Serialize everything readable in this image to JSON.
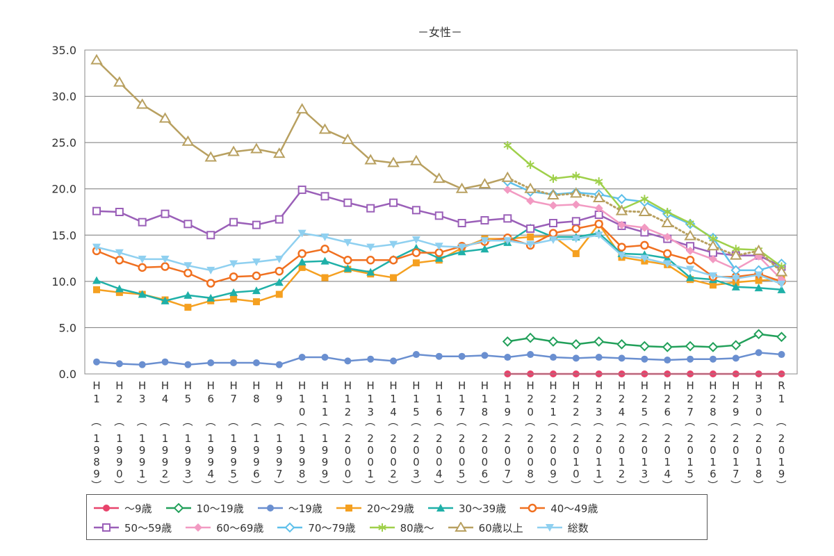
{
  "chart_data": {
    "type": "line",
    "title": "－女性－",
    "ylim": [
      0,
      35
    ],
    "y_ticks": [
      "0.0",
      "5.0",
      "10.0",
      "15.0",
      "20.0",
      "25.0",
      "30.0",
      "35.0"
    ],
    "categories": [
      {
        "era": [
          "H",
          "1"
        ],
        "year": [
          "1",
          "9",
          "8",
          "9"
        ]
      },
      {
        "era": [
          "H",
          "2"
        ],
        "year": [
          "1",
          "9",
          "9",
          "0"
        ]
      },
      {
        "era": [
          "H",
          "3"
        ],
        "year": [
          "1",
          "9",
          "9",
          "1"
        ]
      },
      {
        "era": [
          "H",
          "4"
        ],
        "year": [
          "1",
          "9",
          "9",
          "2"
        ]
      },
      {
        "era": [
          "H",
          "5"
        ],
        "year": [
          "1",
          "9",
          "9",
          "3"
        ]
      },
      {
        "era": [
          "H",
          "6"
        ],
        "year": [
          "1",
          "9",
          "9",
          "4"
        ]
      },
      {
        "era": [
          "H",
          "7"
        ],
        "year": [
          "1",
          "9",
          "9",
          "5"
        ]
      },
      {
        "era": [
          "H",
          "8"
        ],
        "year": [
          "1",
          "9",
          "9",
          "6"
        ]
      },
      {
        "era": [
          "H",
          "9"
        ],
        "year": [
          "1",
          "9",
          "9",
          "7"
        ]
      },
      {
        "era": [
          "H",
          "1",
          "0"
        ],
        "year": [
          "1",
          "9",
          "9",
          "8"
        ]
      },
      {
        "era": [
          "H",
          "1",
          "1"
        ],
        "year": [
          "1",
          "9",
          "9",
          "9"
        ]
      },
      {
        "era": [
          "H",
          "1",
          "2"
        ],
        "year": [
          "2",
          "0",
          "0",
          "0"
        ]
      },
      {
        "era": [
          "H",
          "1",
          "3"
        ],
        "year": [
          "2",
          "0",
          "0",
          "1"
        ]
      },
      {
        "era": [
          "H",
          "1",
          "4"
        ],
        "year": [
          "2",
          "0",
          "0",
          "2"
        ]
      },
      {
        "era": [
          "H",
          "1",
          "5"
        ],
        "year": [
          "2",
          "0",
          "0",
          "3"
        ]
      },
      {
        "era": [
          "H",
          "1",
          "6"
        ],
        "year": [
          "2",
          "0",
          "0",
          "4"
        ]
      },
      {
        "era": [
          "H",
          "1",
          "7"
        ],
        "year": [
          "2",
          "0",
          "0",
          "5"
        ]
      },
      {
        "era": [
          "H",
          "1",
          "8"
        ],
        "year": [
          "2",
          "0",
          "0",
          "6"
        ]
      },
      {
        "era": [
          "H",
          "1",
          "9"
        ],
        "year": [
          "2",
          "0",
          "0",
          "7"
        ]
      },
      {
        "era": [
          "H",
          "2",
          "0"
        ],
        "year": [
          "2",
          "0",
          "0",
          "8"
        ]
      },
      {
        "era": [
          "H",
          "2",
          "1"
        ],
        "year": [
          "2",
          "0",
          "0",
          "9"
        ]
      },
      {
        "era": [
          "H",
          "2",
          "2"
        ],
        "year": [
          "2",
          "0",
          "1",
          "0"
        ]
      },
      {
        "era": [
          "H",
          "2",
          "3"
        ],
        "year": [
          "2",
          "0",
          "1",
          "1"
        ]
      },
      {
        "era": [
          "H",
          "2",
          "4"
        ],
        "year": [
          "2",
          "0",
          "1",
          "2"
        ]
      },
      {
        "era": [
          "H",
          "2",
          "5"
        ],
        "year": [
          "2",
          "0",
          "1",
          "3"
        ]
      },
      {
        "era": [
          "H",
          "2",
          "6"
        ],
        "year": [
          "2",
          "0",
          "1",
          "4"
        ]
      },
      {
        "era": [
          "H",
          "2",
          "7"
        ],
        "year": [
          "2",
          "0",
          "1",
          "5"
        ]
      },
      {
        "era": [
          "H",
          "2",
          "8"
        ],
        "year": [
          "2",
          "0",
          "1",
          "6"
        ]
      },
      {
        "era": [
          "H",
          "2",
          "9"
        ],
        "year": [
          "2",
          "0",
          "1",
          "7"
        ]
      },
      {
        "era": [
          "H",
          "3",
          "0"
        ],
        "year": [
          "2",
          "0",
          "1",
          "8"
        ]
      },
      {
        "era": [
          "R",
          "1"
        ],
        "year": [
          "2",
          "0",
          "1",
          "9"
        ]
      }
    ],
    "series": [
      {
        "name": "～9歳",
        "color": "#e8436b",
        "marker": "circle",
        "values": [
          null,
          null,
          null,
          null,
          null,
          null,
          null,
          null,
          null,
          null,
          null,
          null,
          null,
          null,
          null,
          null,
          null,
          null,
          0.0,
          0.0,
          0.0,
          0.0,
          0.0,
          0.0,
          0.0,
          0.0,
          0.0,
          0.0,
          0.0,
          0.0,
          0.0
        ]
      },
      {
        "name": "10～19歳",
        "color": "#22a05a",
        "marker": "diamond-open",
        "values": [
          null,
          null,
          null,
          null,
          null,
          null,
          null,
          null,
          null,
          null,
          null,
          null,
          null,
          null,
          null,
          null,
          null,
          null,
          3.5,
          3.9,
          3.5,
          3.2,
          3.5,
          3.2,
          3.0,
          2.9,
          3.0,
          2.9,
          3.1,
          4.3,
          4.0
        ]
      },
      {
        "name": "～19歳",
        "color": "#6a8fd0",
        "marker": "circle",
        "values": [
          1.3,
          1.1,
          1.0,
          1.3,
          1.0,
          1.2,
          1.2,
          1.2,
          1.0,
          1.8,
          1.8,
          1.4,
          1.6,
          1.4,
          2.1,
          1.9,
          1.9,
          2.0,
          1.8,
          2.1,
          1.8,
          1.7,
          1.8,
          1.7,
          1.6,
          1.5,
          1.6,
          1.6,
          1.7,
          2.3,
          2.1
        ]
      },
      {
        "name": "20～29歳",
        "color": "#f5a020",
        "marker": "square",
        "values": [
          9.1,
          8.8,
          8.6,
          8.0,
          7.2,
          7.9,
          8.1,
          7.8,
          8.6,
          11.5,
          10.4,
          11.3,
          10.8,
          10.4,
          12.0,
          12.3,
          13.6,
          14.6,
          14.6,
          14.8,
          14.9,
          13.0,
          16.2,
          12.6,
          12.2,
          11.8,
          10.2,
          9.6,
          9.9,
          10.1,
          10.2
        ]
      },
      {
        "name": "30～39歳",
        "color": "#1fb0a8",
        "marker": "triangle",
        "values": [
          10.1,
          9.2,
          8.6,
          7.9,
          8.5,
          8.2,
          8.8,
          9.0,
          9.9,
          12.1,
          12.2,
          11.4,
          11.0,
          12.4,
          13.6,
          12.5,
          13.2,
          13.5,
          14.2,
          15.8,
          14.8,
          14.8,
          15.2,
          13.0,
          12.9,
          12.5,
          10.4,
          10.2,
          9.4,
          9.3,
          9.1
        ]
      },
      {
        "name": "40～49歳",
        "color": "#f07020",
        "marker": "circle-open",
        "values": [
          13.3,
          12.3,
          11.5,
          11.6,
          10.9,
          9.8,
          10.5,
          10.6,
          11.1,
          13.0,
          13.5,
          12.3,
          12.3,
          12.3,
          13.1,
          13.1,
          13.8,
          14.3,
          14.7,
          13.9,
          15.2,
          15.7,
          16.2,
          13.7,
          13.9,
          13.0,
          12.3,
          10.5,
          10.5,
          10.8,
          10.0
        ]
      },
      {
        "name": "50～59歳",
        "color": "#9a5fb8",
        "marker": "square-open",
        "values": [
          17.6,
          17.5,
          16.4,
          17.3,
          16.2,
          15.0,
          16.4,
          16.1,
          16.7,
          19.9,
          19.2,
          18.5,
          17.9,
          18.5,
          17.7,
          17.1,
          16.3,
          16.6,
          16.8,
          15.7,
          16.3,
          16.5,
          17.2,
          16.0,
          15.3,
          14.6,
          13.8,
          13.1,
          12.8,
          12.8,
          11.6
        ]
      },
      {
        "name": "60～69歳",
        "color": "#f29ac2",
        "marker": "diamond",
        "values": [
          null,
          null,
          null,
          null,
          null,
          null,
          null,
          null,
          null,
          null,
          null,
          null,
          null,
          null,
          null,
          null,
          null,
          null,
          19.9,
          18.7,
          18.2,
          18.3,
          17.9,
          16.1,
          15.8,
          14.8,
          13.3,
          12.4,
          11.3,
          12.7,
          10.2
        ]
      },
      {
        "name": "70～79歳",
        "color": "#5fc0ea",
        "marker": "diamond-open",
        "values": [
          null,
          null,
          null,
          null,
          null,
          null,
          null,
          null,
          null,
          null,
          null,
          null,
          null,
          null,
          null,
          null,
          null,
          null,
          20.8,
          19.7,
          19.4,
          19.6,
          19.4,
          18.9,
          18.6,
          17.3,
          16.2,
          14.7,
          11.2,
          11.2,
          11.9
        ]
      },
      {
        "name": "80歳～",
        "color": "#9fd04a",
        "marker": "asterisk",
        "values": [
          null,
          null,
          null,
          null,
          null,
          null,
          null,
          null,
          null,
          null,
          null,
          null,
          null,
          null,
          null,
          null,
          null,
          null,
          24.7,
          22.6,
          21.1,
          21.4,
          20.8,
          17.8,
          18.9,
          17.5,
          16.3,
          14.6,
          13.5,
          13.4,
          11.6
        ]
      },
      {
        "name": "60歳以上",
        "color": "#b8a060",
        "marker": "triangle-open",
        "dotted_from": 18,
        "values": [
          33.9,
          31.5,
          29.1,
          27.6,
          25.1,
          23.4,
          24.0,
          24.3,
          23.8,
          28.6,
          26.4,
          25.3,
          23.1,
          22.8,
          23.0,
          21.1,
          20.0,
          20.5,
          21.2,
          20.0,
          19.3,
          19.5,
          19.0,
          17.6,
          17.5,
          16.3,
          14.9,
          13.8,
          12.8,
          13.3,
          11.0
        ]
      },
      {
        "name": "総数",
        "color": "#8fd0f0",
        "marker": "triangle-down",
        "values": [
          13.7,
          13.1,
          12.4,
          12.4,
          11.7,
          11.2,
          11.9,
          12.1,
          12.4,
          15.2,
          14.8,
          14.2,
          13.7,
          14.0,
          14.5,
          13.8,
          13.7,
          14.4,
          14.4,
          14.0,
          14.5,
          14.6,
          15.0,
          12.8,
          12.5,
          11.9,
          11.3,
          10.6,
          10.3,
          10.7,
          9.7
        ]
      }
    ]
  }
}
